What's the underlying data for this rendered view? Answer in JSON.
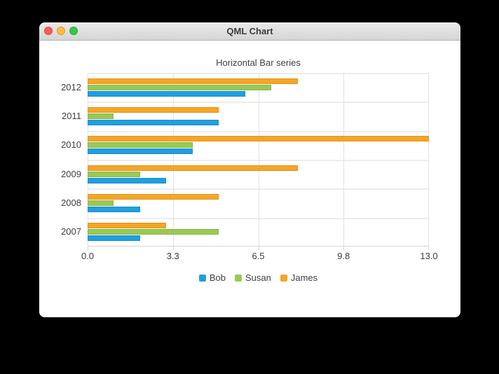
{
  "window": {
    "title": "QML Chart",
    "traffic_lights": [
      {
        "name": "close",
        "color": "#fc5b57"
      },
      {
        "name": "minimize",
        "color": "#fdbe41"
      },
      {
        "name": "zoom",
        "color": "#33c748"
      }
    ]
  },
  "chart_data": {
    "type": "bar",
    "orientation": "horizontal",
    "title": "Horizontal Bar series",
    "categories": [
      "2007",
      "2008",
      "2009",
      "2010",
      "2011",
      "2012"
    ],
    "series": [
      {
        "name": "Bob",
        "color": "#209fdf",
        "values": [
          2,
          2,
          3,
          4,
          5,
          6
        ]
      },
      {
        "name": "Susan",
        "color": "#99ca53",
        "values": [
          5,
          1,
          2,
          4,
          1,
          7
        ]
      },
      {
        "name": "James",
        "color": "#f6a625",
        "values": [
          3,
          5,
          8,
          13,
          5,
          8
        ]
      }
    ],
    "xlim": [
      0,
      13
    ],
    "x_tick_labels": [
      "0.0",
      "3.3",
      "6.5",
      "9.8",
      "13.0"
    ],
    "grid": true,
    "legend_position": "bottom",
    "note_bar_order_top_to_bottom_in_group": [
      "James",
      "Susan",
      "Bob"
    ],
    "category_order_top_to_bottom": [
      "2012",
      "2011",
      "2010",
      "2009",
      "2008",
      "2007"
    ]
  }
}
